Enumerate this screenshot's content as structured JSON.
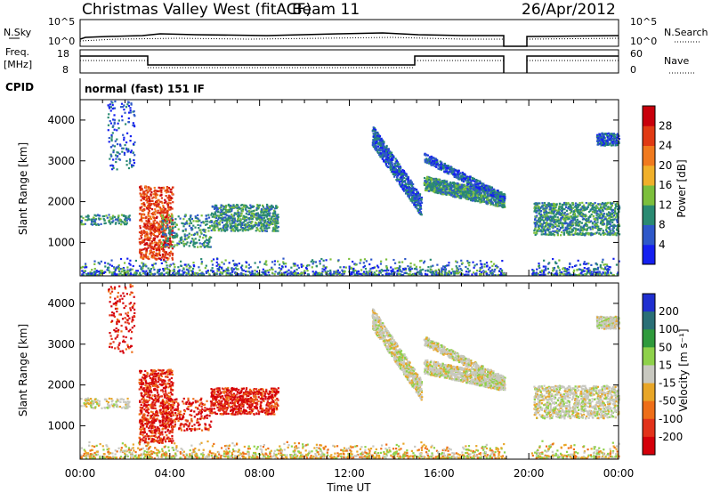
{
  "header": {
    "station": "Christmas Valley West (fitACF)",
    "beam": "Beam 11",
    "date": "26/Apr/2012"
  },
  "status_panels": {
    "nsky_label": "N.Sky",
    "nsearch_label": "N.Search",
    "noise_ticks": [
      "10^5",
      "10^0"
    ],
    "freq_label_line1": "Freq.",
    "freq_label_line2": "[MHz]",
    "freq_ticks": [
      "18",
      "8"
    ],
    "nave_label": "Nave",
    "nave_ticks": [
      "60",
      "0"
    ],
    "cpid_label": "CPID",
    "cpid_value": "normal (fast) 151 IF"
  },
  "chart_data": [
    {
      "type": "heatmap",
      "title": "",
      "ylabel": "Slant Range [km]",
      "xlabel": "",
      "x": [
        "00:00",
        "04:00",
        "08:00",
        "12:00",
        "16:00",
        "20:00",
        "00:00"
      ],
      "y_ticks": [
        1000,
        2000,
        3000,
        4000
      ],
      "ylim": [
        180,
        4500
      ],
      "xlim_hours": [
        0,
        24
      ],
      "colorbar": {
        "label": "Power [dB]",
        "ticks": [
          4,
          8,
          12,
          16,
          20,
          24,
          28
        ],
        "colors": [
          "#1520f0",
          "#2e58c9",
          "#2a8a72",
          "#7cbf3c",
          "#f0b02a",
          "#f07a1e",
          "#e03a14",
          "#c8000c"
        ]
      },
      "data_gap_hours": [
        18.9,
        20.1
      ]
    },
    {
      "type": "heatmap",
      "title": "",
      "ylabel": "Slant Range [km]",
      "xlabel": "Time UT",
      "x": [
        "00:00",
        "04:00",
        "08:00",
        "12:00",
        "16:00",
        "20:00",
        "00:00"
      ],
      "y_ticks": [
        1000,
        2000,
        3000,
        4000
      ],
      "ylim": [
        180,
        4500
      ],
      "xlim_hours": [
        0,
        24
      ],
      "colorbar": {
        "label": "Velocity [m s⁻¹]",
        "ticks": [
          "200",
          "100",
          "50",
          "15",
          "-15",
          "-50",
          "-100",
          "-200"
        ],
        "colors": [
          "#1f2fd0",
          "#2a6f76",
          "#2f9a3c",
          "#8ed14a",
          "#c8c8c0",
          "#e8a628",
          "#ee6e18",
          "#e2321a",
          "#d4000a"
        ]
      },
      "data_gap_hours": [
        18.9,
        20.1
      ]
    }
  ]
}
